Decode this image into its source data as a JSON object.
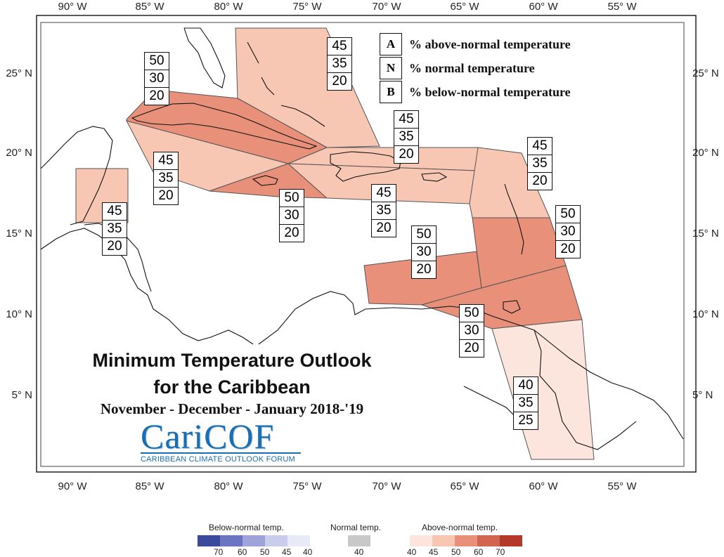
{
  "map": {
    "title_line1": "Minimum Temperature Outlook",
    "title_line2": "for the Caribbean",
    "period": "November - December - January 2018-'19"
  },
  "logo": {
    "name": "CariCOF",
    "subtitle": "CARIBBEAN CLIMATE OUTLOOK FORUM"
  },
  "axes": {
    "x_labels": [
      "90° W",
      "85° W",
      "80° W",
      "75° W",
      "70° W",
      "65° W",
      "60° W",
      "55° W"
    ],
    "y_labels": [
      "25° N",
      "20° N",
      "15° N",
      "10° N",
      "5° N"
    ]
  },
  "legend_key": [
    {
      "letter": "A",
      "text": "% above-normal temperature"
    },
    {
      "letter": "N",
      "text": "% normal temperature"
    },
    {
      "letter": "B",
      "text": "% below-normal temperature"
    }
  ],
  "regions": [
    {
      "id": "bahamas",
      "A": "45",
      "N": "35",
      "B": "20",
      "color": "#f7c7b3"
    },
    {
      "id": "cuba",
      "A": "50",
      "N": "30",
      "B": "20",
      "color": "#e8907a"
    },
    {
      "id": "cayman",
      "A": "45",
      "N": "35",
      "B": "20",
      "color": "#f7c7b3"
    },
    {
      "id": "belize",
      "A": "45",
      "N": "35",
      "B": "20",
      "color": "#f7c7b3"
    },
    {
      "id": "jamaica",
      "A": "50",
      "N": "30",
      "B": "20",
      "color": "#e8907a"
    },
    {
      "id": "hispaniola_north",
      "A": "45",
      "N": "35",
      "B": "20",
      "color": "#f7c7b3"
    },
    {
      "id": "hispaniola_south",
      "A": "45",
      "N": "35",
      "B": "20",
      "color": "#f7c7b3"
    },
    {
      "id": "leeward",
      "A": "45",
      "N": "35",
      "B": "20",
      "color": "#f7c7b3"
    },
    {
      "id": "windward",
      "A": "50",
      "N": "30",
      "B": "20",
      "color": "#e8907a"
    },
    {
      "id": "abc_islands",
      "A": "50",
      "N": "30",
      "B": "20",
      "color": "#e8907a"
    },
    {
      "id": "trinidad",
      "A": "50",
      "N": "30",
      "B": "20",
      "color": "#e8907a"
    },
    {
      "id": "guianas",
      "A": "40",
      "N": "35",
      "B": "25",
      "color": "#fce5dc"
    }
  ],
  "colorbar": {
    "below": {
      "title": "Below-normal temp.",
      "ticks": [
        "70",
        "60",
        "50",
        "45",
        "40"
      ],
      "colors": [
        "#3b4a9a",
        "#6b75c2",
        "#9ea4d9",
        "#c9cceb",
        "#e9eaf8"
      ]
    },
    "normal": {
      "title": "Normal temp.",
      "ticks": [
        "40"
      ],
      "colors": [
        "#c8c8c8"
      ]
    },
    "above": {
      "title": "Above-normal temp.",
      "ticks": [
        "40",
        "45",
        "50",
        "60",
        "70"
      ],
      "colors": [
        "#fce5dc",
        "#f7c7b3",
        "#e8907a",
        "#d2654f",
        "#b33a2a"
      ]
    }
  }
}
